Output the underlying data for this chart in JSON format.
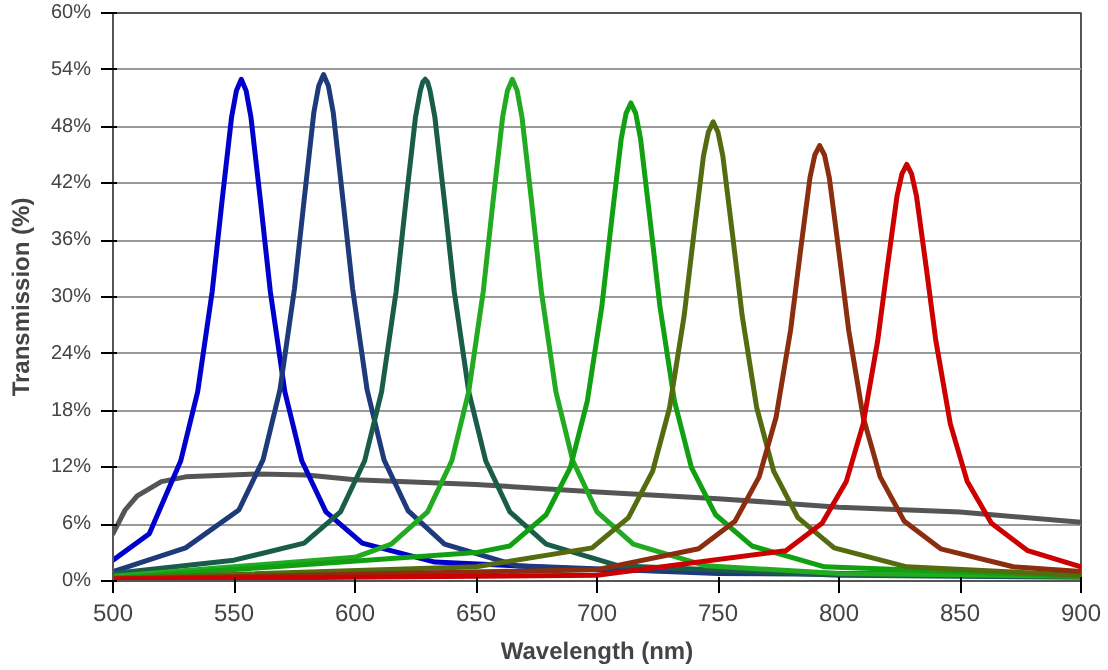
{
  "chart_data": {
    "type": "line",
    "xlabel": "Wavelength (nm)",
    "ylabel": "Transmission (%)",
    "xlim": [
      500,
      900
    ],
    "xticks": [
      500,
      550,
      600,
      650,
      700,
      750,
      800,
      850,
      900
    ],
    "ylim": [
      0,
      60
    ],
    "yticks": [
      {
        "value": 0,
        "label": "0%"
      },
      {
        "value": 6,
        "label": "6%"
      },
      {
        "value": 12,
        "label": "12%"
      },
      {
        "value": 18,
        "label": "18%"
      },
      {
        "value": 24,
        "label": "24%"
      },
      {
        "value": 30,
        "label": "30%"
      },
      {
        "value": 36,
        "label": "36%"
      },
      {
        "value": 42,
        "label": "42%"
      },
      {
        "value": 48,
        "label": "48%"
      },
      {
        "value": 54,
        "label": "54%"
      },
      {
        "value": 60,
        "label": "60%"
      }
    ],
    "grid": "y",
    "marker": "none",
    "line_style": "solid",
    "series": [
      {
        "color": "#555555",
        "x": [
          500,
          505,
          510,
          520,
          530,
          560,
          580,
          600,
          650,
          700,
          750,
          800,
          850,
          900
        ],
        "values": [
          5,
          7.5,
          9,
          10.5,
          11,
          11.3,
          11.2,
          10.7,
          10.2,
          9.4,
          8.7,
          7.8,
          7.3,
          6.2
        ]
      },
      {
        "color": "#0000cc",
        "x": [
          500,
          515,
          528,
          535,
          541,
          545,
          549,
          551,
          553,
          555,
          557,
          561,
          565,
          571,
          578,
          588,
          603,
          633,
          700,
          800,
          900
        ],
        "values": [
          2.2,
          5,
          12.7,
          20,
          30.6,
          40,
          49,
          51.8,
          53,
          51.8,
          49,
          40,
          30.6,
          20,
          12.7,
          7.3,
          4,
          2,
          1.2,
          0.8,
          0.6
        ]
      },
      {
        "color": "#1f3a7a",
        "x": [
          500,
          530,
          552,
          562,
          569,
          575,
          579,
          583,
          585,
          587,
          589,
          591,
          595,
          599,
          605,
          612,
          622,
          637,
          667,
          750,
          900
        ],
        "values": [
          1,
          3.5,
          7.5,
          12.8,
          20.2,
          30.9,
          40.3,
          49.5,
          52.3,
          53.5,
          52.3,
          49.5,
          40.3,
          30.9,
          20.2,
          12.8,
          7.4,
          3.9,
          1.6,
          0.8,
          0.5
        ]
      },
      {
        "color": "#1a5c4a",
        "x": [
          500,
          550,
          579,
          594,
          604,
          611,
          617,
          621,
          625,
          627,
          628,
          629,
          630,
          631,
          633,
          637,
          641,
          647,
          654,
          664,
          679,
          709,
          800,
          900
        ],
        "values": [
          0.8,
          2.2,
          4,
          7.3,
          12.7,
          20,
          30.6,
          40,
          49,
          51.8,
          52.7,
          53,
          52.7,
          51.8,
          49,
          40,
          30.6,
          20,
          12.7,
          7.3,
          3.9,
          1.6,
          0.6,
          0.4
        ]
      },
      {
        "color": "#22aa22",
        "x": [
          500,
          600,
          615,
          630,
          640,
          647,
          653,
          657,
          661,
          663,
          665,
          667,
          669,
          673,
          677,
          683,
          690,
          700,
          715,
          745,
          800,
          900
        ],
        "values": [
          0.5,
          2.5,
          3.9,
          7.3,
          12.7,
          20,
          30.6,
          40,
          49,
          51.8,
          53,
          51.8,
          49,
          40,
          30.6,
          20,
          12.7,
          7.3,
          3.9,
          1.6,
          0.8,
          0.5
        ]
      },
      {
        "color": "#11a011",
        "x": [
          500,
          650,
          664,
          679,
          689,
          696,
          702,
          706,
          710,
          712,
          714,
          716,
          718,
          722,
          726,
          732,
          739,
          749,
          764,
          794,
          900
        ],
        "values": [
          0.3,
          3,
          3.7,
          7,
          12,
          19,
          29,
          38,
          46.7,
          49.4,
          50.5,
          49.4,
          46.7,
          38,
          29,
          19,
          12,
          7,
          3.7,
          1.5,
          0.5
        ]
      },
      {
        "color": "#556b0f",
        "x": [
          500,
          650,
          698,
          713,
          723,
          730,
          736,
          740,
          744,
          746,
          748,
          750,
          752,
          756,
          760,
          766,
          773,
          783,
          798,
          828,
          900
        ],
        "values": [
          0.3,
          1.5,
          3.5,
          6.7,
          11.6,
          18.3,
          28,
          36.6,
          44.9,
          47.4,
          48.5,
          47.4,
          44.9,
          36.6,
          28,
          18.3,
          11.6,
          6.7,
          3.5,
          1.5,
          0.6
        ]
      },
      {
        "color": "#8b2e0f",
        "x": [
          500,
          700,
          742,
          757,
          767,
          774,
          780,
          784,
          788,
          790,
          792,
          794,
          796,
          800,
          804,
          810,
          817,
          827,
          842,
          872,
          900
        ],
        "values": [
          0.2,
          1.2,
          3.4,
          6.3,
          11,
          17.3,
          26.5,
          34.7,
          42.6,
          45,
          46,
          45,
          42.6,
          34.7,
          26.5,
          17.3,
          11,
          6.3,
          3.4,
          1.5,
          1
        ]
      },
      {
        "color": "#cc0000",
        "x": [
          500,
          700,
          778,
          793,
          803,
          810,
          816,
          820,
          824,
          826,
          828,
          830,
          832,
          836,
          840,
          846,
          853,
          863,
          878,
          900
        ],
        "values": [
          0.2,
          0.6,
          3.2,
          6.1,
          10.5,
          16.6,
          25.4,
          33.2,
          40.7,
          43,
          44,
          43,
          40.7,
          33.2,
          25.4,
          16.6,
          10.5,
          6.1,
          3.2,
          1.5
        ]
      }
    ]
  }
}
